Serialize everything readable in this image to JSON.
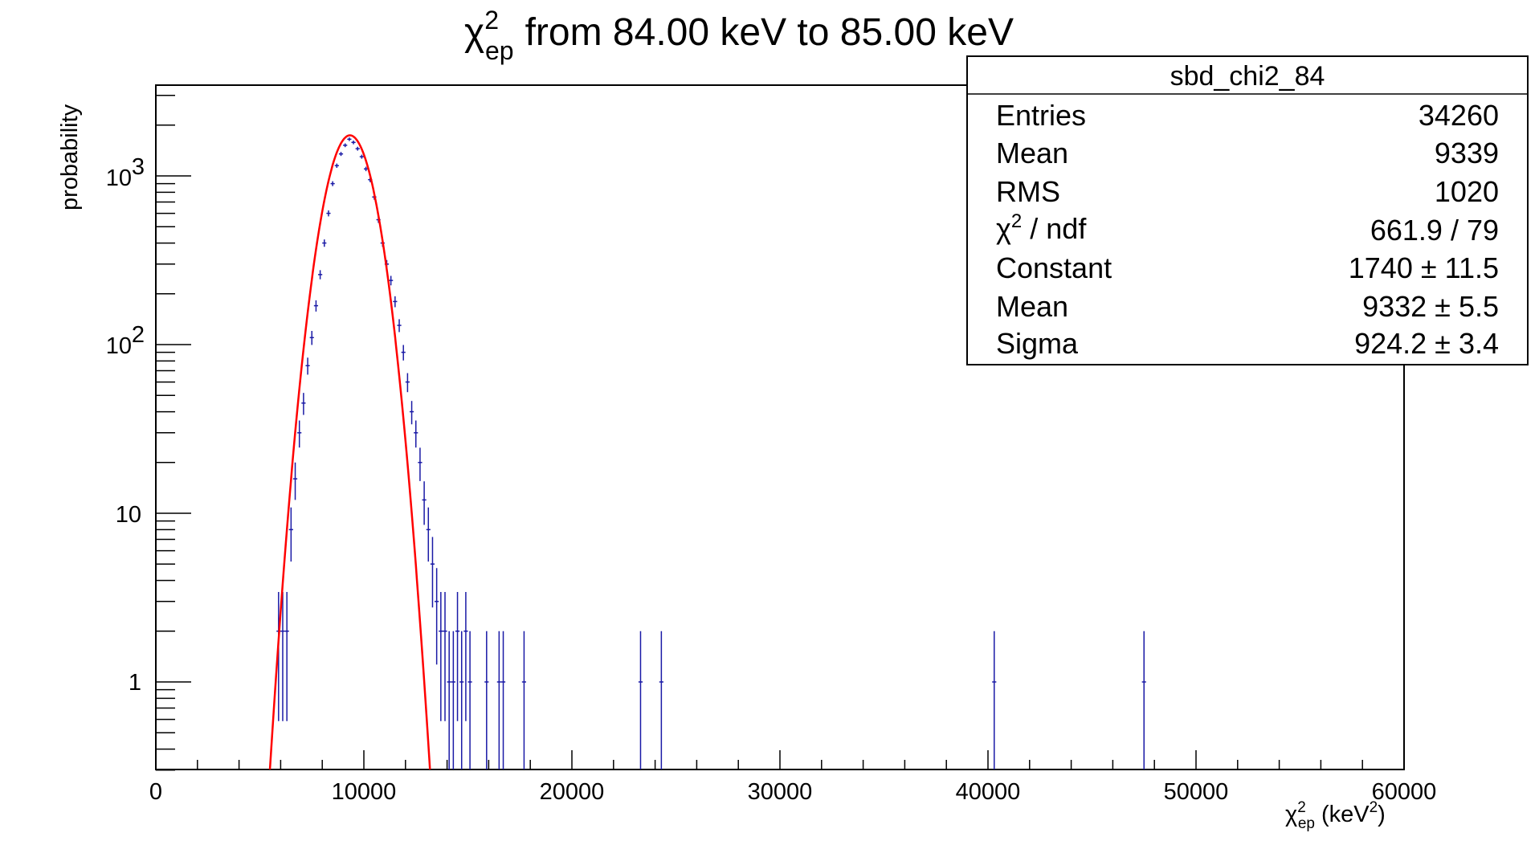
{
  "chart_data": {
    "type": "scatter",
    "title": "from 84.00 keV to 85.00 keV",
    "xlabel": "(keV",
    "ylabel": "probability",
    "xlim": [
      0,
      60000
    ],
    "ylim": [
      0.3,
      3500
    ],
    "y_scale": "log",
    "grid": false,
    "x_ticks": [
      "0",
      "10000",
      "20000",
      "30000",
      "40000",
      "50000",
      "60000"
    ],
    "y_ticks": [
      "1",
      "10",
      "10",
      "10"
    ],
    "bin_width": 200,
    "colors": {
      "data": "#1a1aa6",
      "fit": "#ff0000",
      "frame": "#000000"
    },
    "histogram": [
      [
        5900,
        2
      ],
      [
        6100,
        2
      ],
      [
        6300,
        2
      ],
      [
        6500,
        8
      ],
      [
        6700,
        16
      ],
      [
        6900,
        30
      ],
      [
        7100,
        45
      ],
      [
        7300,
        75
      ],
      [
        7500,
        110
      ],
      [
        7700,
        170
      ],
      [
        7900,
        260
      ],
      [
        8100,
        400
      ],
      [
        8300,
        600
      ],
      [
        8500,
        900
      ],
      [
        8700,
        1150
      ],
      [
        8900,
        1350
      ],
      [
        9100,
        1520
      ],
      [
        9300,
        1650
      ],
      [
        9500,
        1580
      ],
      [
        9700,
        1450
      ],
      [
        9900,
        1300
      ],
      [
        10100,
        1100
      ],
      [
        10300,
        950
      ],
      [
        10500,
        750
      ],
      [
        10700,
        550
      ],
      [
        10900,
        400
      ],
      [
        11100,
        300
      ],
      [
        11300,
        240
      ],
      [
        11500,
        180
      ],
      [
        11700,
        130
      ],
      [
        11900,
        90
      ],
      [
        12100,
        60
      ],
      [
        12300,
        40
      ],
      [
        12500,
        30
      ],
      [
        12700,
        20
      ],
      [
        12900,
        12
      ],
      [
        13100,
        8
      ],
      [
        13300,
        5
      ],
      [
        13500,
        3
      ],
      [
        13700,
        2
      ],
      [
        13900,
        2
      ],
      [
        14100,
        1
      ],
      [
        14300,
        1
      ],
      [
        14500,
        2
      ],
      [
        14700,
        1
      ],
      [
        14900,
        2
      ],
      [
        15100,
        1
      ],
      [
        15900,
        1
      ],
      [
        16500,
        1
      ],
      [
        16700,
        1
      ],
      [
        17700,
        1
      ],
      [
        23300,
        1
      ],
      [
        24300,
        1
      ],
      [
        40300,
        1
      ],
      [
        47500,
        1
      ]
    ],
    "series": [
      {
        "name": "gaus",
        "constant": 1740,
        "mean": 9332,
        "sigma": 924.2,
        "range": [
          5000,
          13600
        ]
      }
    ]
  },
  "stats": {
    "name": "sbd_chi2_84",
    "rows": [
      {
        "label": "Entries",
        "value": "34260"
      },
      {
        "label": "Mean",
        "value": "9339"
      },
      {
        "label": "RMS",
        "value": "1020"
      },
      {
        "label": "/ ndf",
        "value": "661.9 / 79"
      },
      {
        "label": "Constant",
        "value": "1740 ± 11.5"
      },
      {
        "label": "Mean",
        "value": "9332 ± 5.5"
      },
      {
        "label": "Sigma",
        "value": "924.2 ± 3.4"
      }
    ]
  }
}
